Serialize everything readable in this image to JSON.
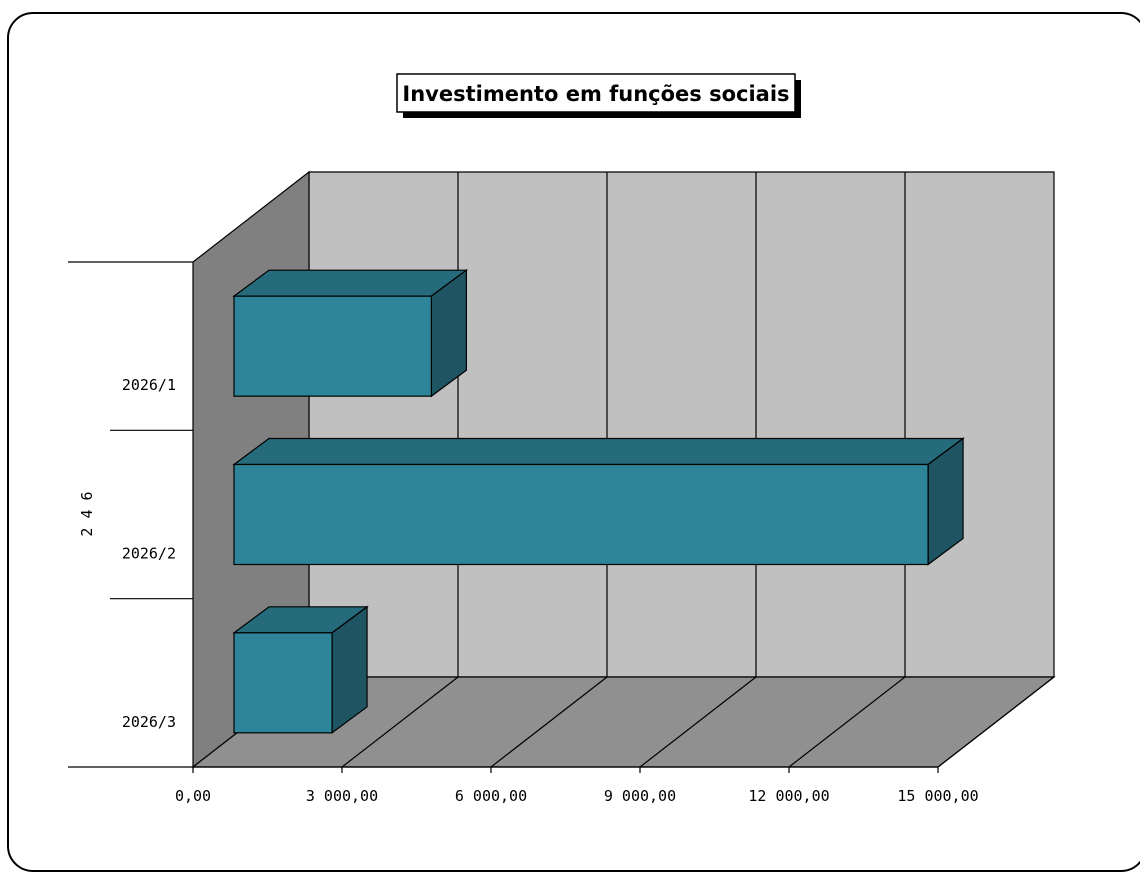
{
  "chart_data": {
    "type": "bar",
    "orientation": "horizontal",
    "three_d": true,
    "title": "Investimento em funções sociais",
    "group_label": "2 4 6",
    "categories": [
      "2026/1",
      "2026/2",
      "2026/3"
    ],
    "values": [
      4800,
      14800,
      2800
    ],
    "x_ticks": [
      "0,00",
      "3 000,00",
      "6 000,00",
      "9 000,00",
      "12 000,00",
      "15 000,00"
    ],
    "xlim": [
      0,
      15000
    ],
    "grid": true,
    "legend": "none",
    "colors": {
      "bar_front": "#2e8599",
      "bar_top": "#256b7b",
      "bar_side": "#1f5563",
      "back_wall": "#c0c0c0",
      "side_wall": "#808080",
      "floor": "#909090"
    }
  }
}
